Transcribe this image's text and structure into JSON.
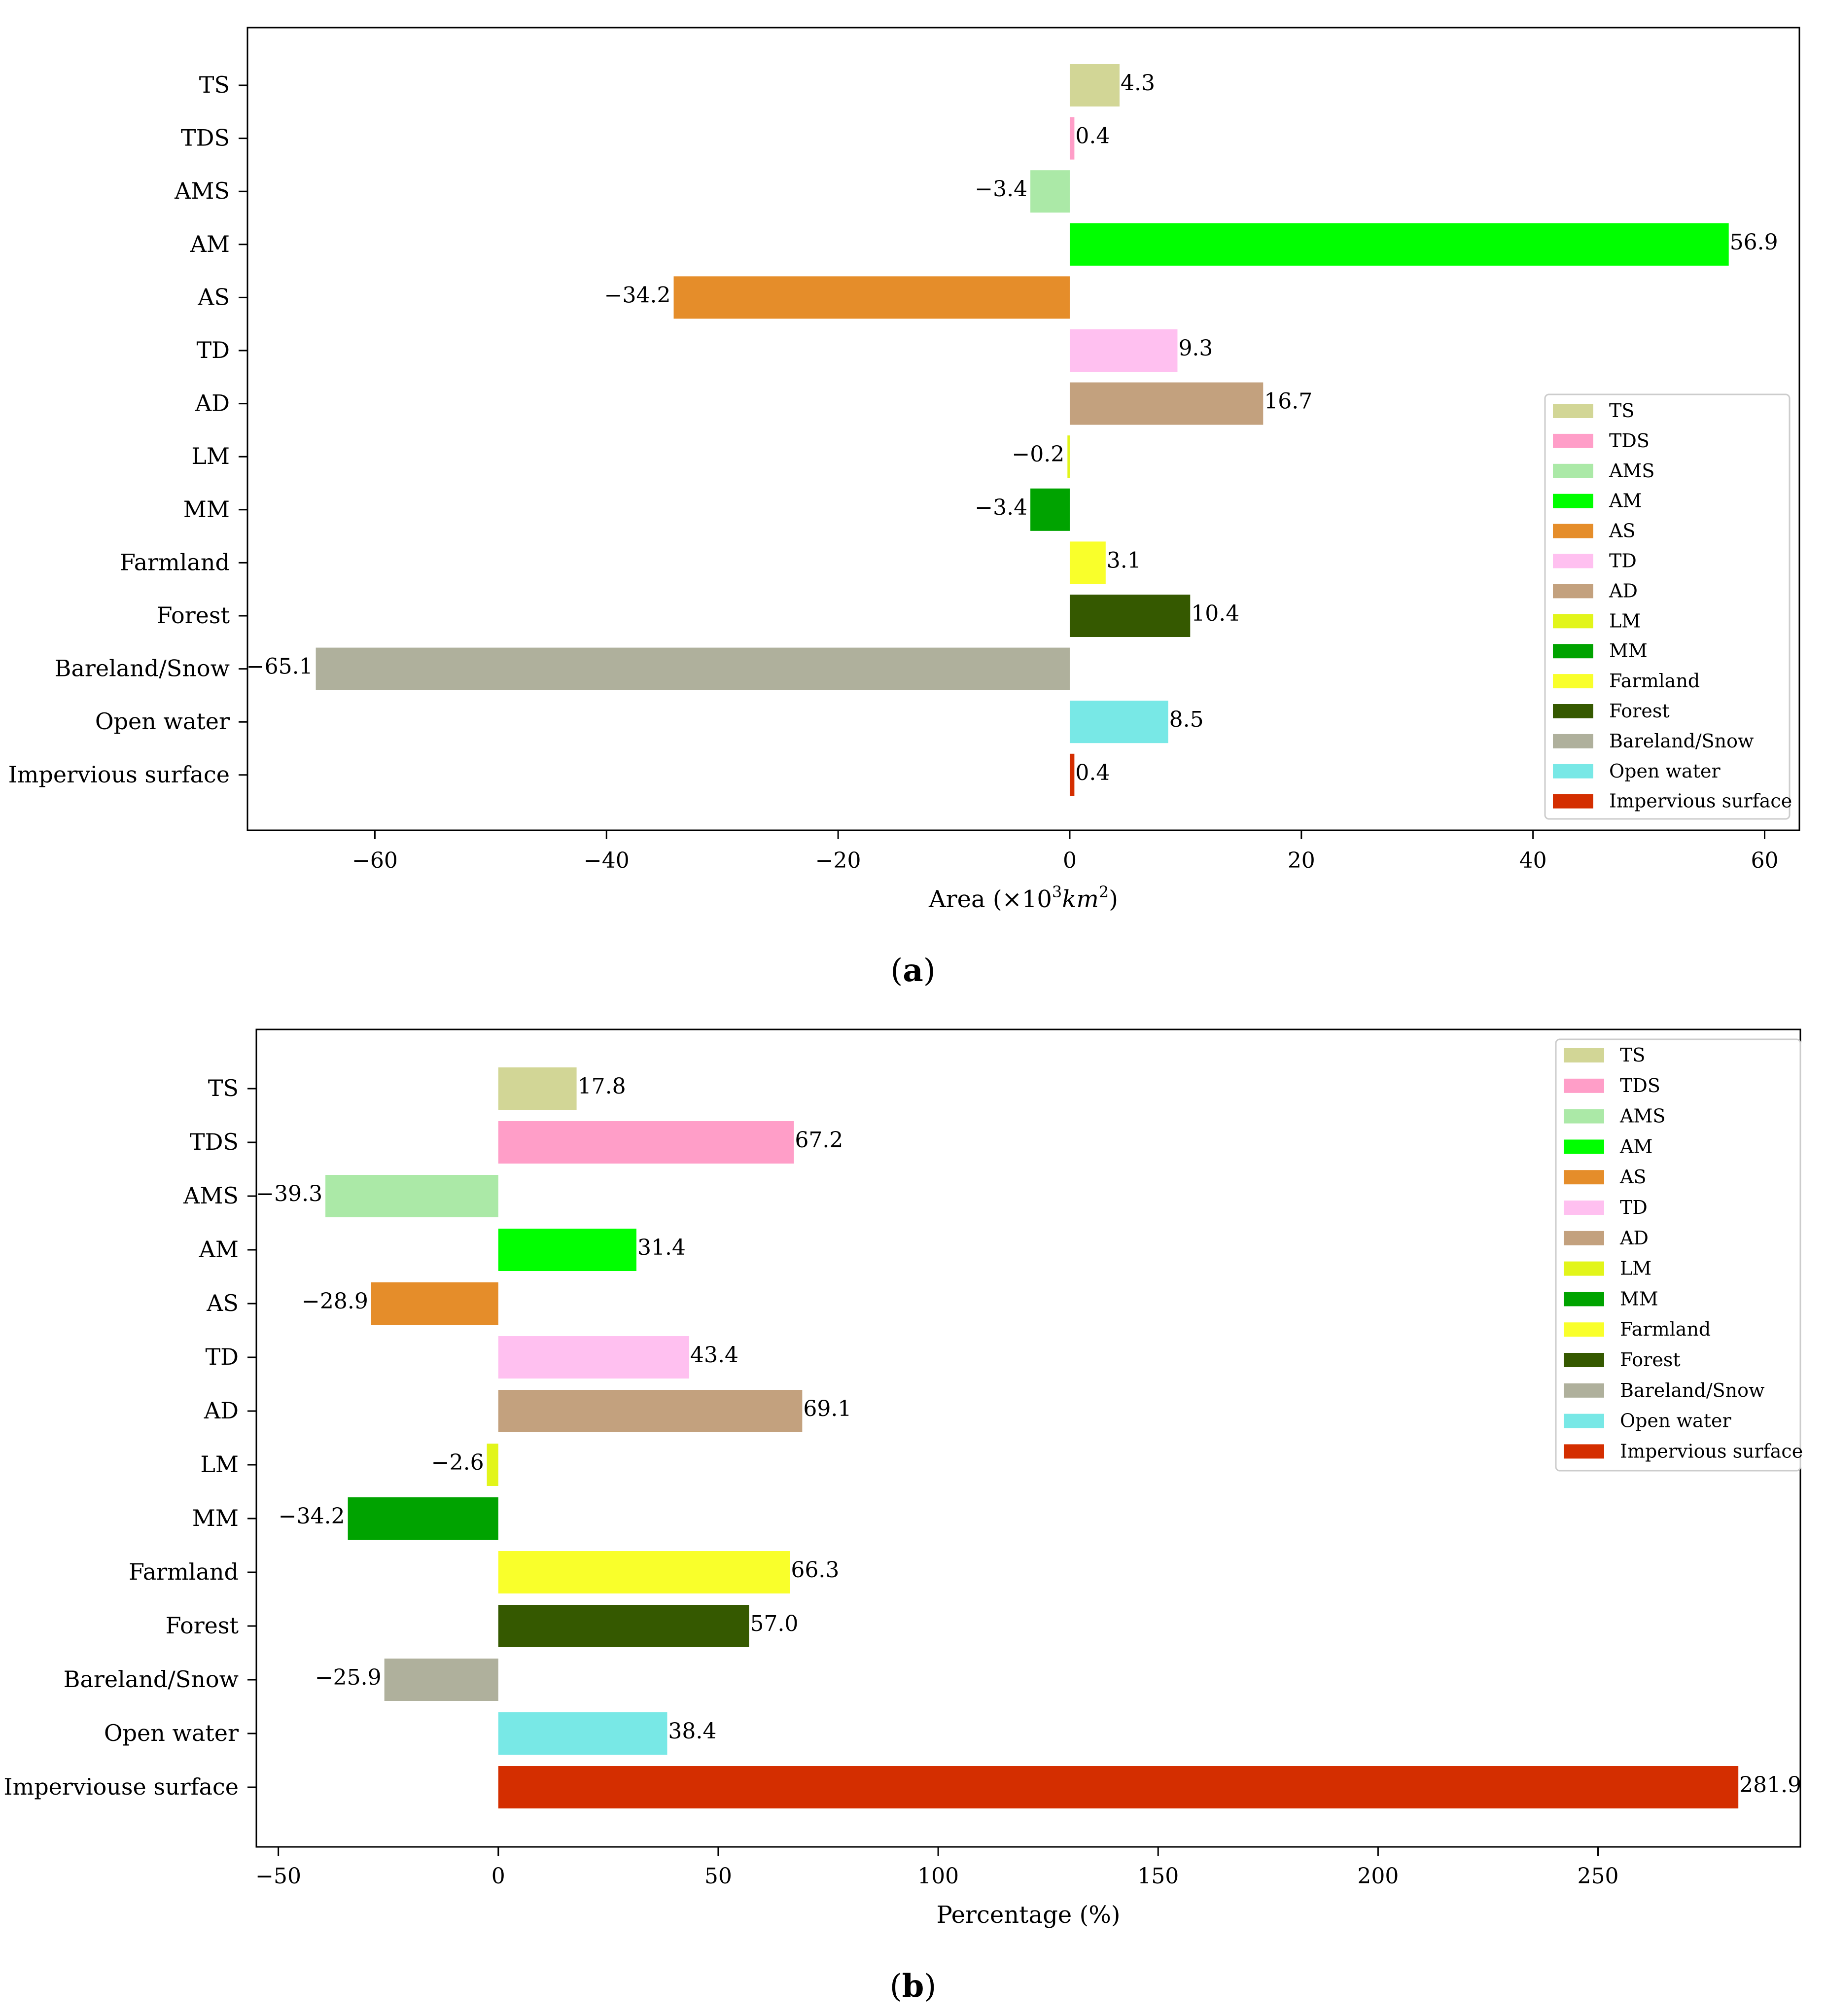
{
  "chart_data": [
    {
      "type": "bar",
      "orientation": "horizontal",
      "panel_label": "a",
      "categories": [
        "TS",
        "TDS",
        "AMS",
        "AM",
        "AS",
        "TD",
        "AD",
        "LM",
        "MM",
        "Farmland",
        "Forest",
        "Bareland/Snow",
        "Open water",
        "Impervious surface"
      ],
      "values": [
        4.3,
        0.4,
        -3.4,
        56.9,
        -34.2,
        9.3,
        16.7,
        -0.2,
        -3.4,
        3.1,
        10.4,
        -65.1,
        8.5,
        0.4
      ],
      "value_labels": [
        "4.3",
        "0.4",
        "−3.4",
        "56.9",
        "−34.2",
        "9.3",
        "16.7",
        "−0.2",
        "−3.4",
        "3.1",
        "10.4",
        "−65.1",
        "8.5",
        "0.4"
      ],
      "xlabel": "Area (×10³km²)",
      "xlabel_parts": {
        "prefix": "Area (×10",
        "exp": "3",
        "unit": "km",
        "unit_exp": "2",
        "suffix": ")"
      },
      "xlim": [
        -71,
        63
      ],
      "xticks": [
        -60,
        -40,
        -20,
        0,
        20,
        40,
        60
      ],
      "xtick_labels": [
        "−60",
        "−40",
        "−20",
        "0",
        "20",
        "40",
        "60"
      ],
      "legend_labels": [
        "TS",
        "TDS",
        "AMS",
        "AM",
        "AS",
        "TD",
        "AD",
        "LM",
        "MM",
        "Farmland",
        "Forest",
        "Bareland/Snow",
        "Open water",
        "Impervious surface"
      ],
      "legend_position": "lower-right"
    },
    {
      "type": "bar",
      "orientation": "horizontal",
      "panel_label": "b",
      "categories": [
        "TS",
        "TDS",
        "AMS",
        "AM",
        "AS",
        "TD",
        "AD",
        "LM",
        "MM",
        "Farmland",
        "Forest",
        "Bareland/Snow",
        "Open water",
        "Imperviouse surface"
      ],
      "values": [
        17.8,
        67.2,
        -39.3,
        31.4,
        -28.9,
        43.4,
        69.1,
        -2.6,
        -34.2,
        66.3,
        57.0,
        -25.9,
        38.4,
        281.9
      ],
      "value_labels": [
        "17.8",
        "67.2",
        "−39.3",
        "31.4",
        "−28.9",
        "43.4",
        "69.1",
        "−2.6",
        "−34.2",
        "66.3",
        "57.0",
        "−25.9",
        "38.4",
        "281.9"
      ],
      "xlabel": "Percentage (%)",
      "xlim": [
        -55,
        296
      ],
      "xticks": [
        -50,
        0,
        50,
        100,
        150,
        200,
        250
      ],
      "xtick_labels": [
        "−50",
        "0",
        "50",
        "100",
        "150",
        "200",
        "250"
      ],
      "legend_labels": [
        "TS",
        "TDS",
        "AMS",
        "AM",
        "AS",
        "TD",
        "AD",
        "LM",
        "MM",
        "Farmland",
        "Forest",
        "Bareland/Snow",
        "Open water",
        "Impervious surface"
      ],
      "legend_position": "upper-right"
    }
  ],
  "colors": [
    "#d2d696",
    "#ff9ec8",
    "#abe9a7",
    "#00ff00",
    "#e58d2a",
    "#ffc0f0",
    "#c3a17e",
    "#e2f51a",
    "#00a300",
    "#f9ff2b",
    "#355900",
    "#afb09c",
    "#78e8e6",
    "#d42e00"
  ]
}
